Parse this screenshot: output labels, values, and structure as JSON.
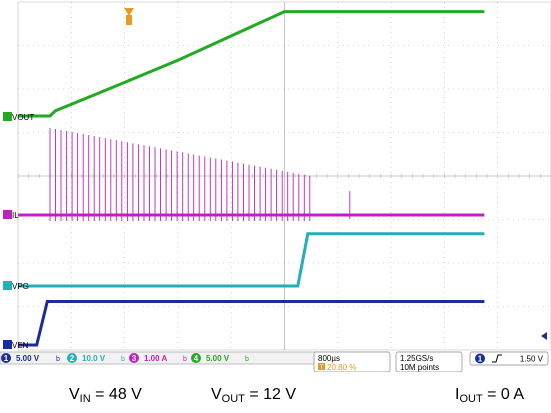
{
  "chart_data": {
    "type": "line",
    "x_unit": "µs",
    "time_per_division": "800µs",
    "trigger_position": "20.80 %",
    "series": [
      {
        "name": "VOUT",
        "channel": 4,
        "color": "#22aa22",
        "scale": "5.00 V",
        "x": [
          0,
          480,
          560,
          1200,
          2400,
          4000,
          7000
        ],
        "y": [
          0,
          0,
          0.6,
          2.6,
          6.4,
          12,
          12
        ]
      },
      {
        "name": "IL",
        "channel": 3,
        "color": "#c020c0",
        "scale": "1.00 A",
        "x": [
          0,
          7000
        ],
        "y": [
          0,
          0
        ]
      },
      {
        "name": "VPG",
        "channel": 2,
        "color": "#20b0b8",
        "scale": "10.0 V",
        "x": [
          0,
          4200,
          4350,
          7000
        ],
        "y": [
          0,
          0,
          12,
          12
        ]
      },
      {
        "name": "VEN",
        "channel": 1,
        "color": "#1a2d9c",
        "scale": "5.00 V",
        "x": [
          0,
          280,
          440,
          7000
        ],
        "y": [
          0,
          0,
          5,
          5
        ]
      }
    ],
    "il_pulses": {
      "x_range": [
        480,
        4380
      ],
      "max_amplitude": 2.0,
      "count": 48,
      "isolated_pulse_x": 4980
    }
  },
  "status_bar": {
    "ch1_num": "1",
    "ch1_scale": "5.00 V",
    "ch2_num": "2",
    "ch2_scale": "10.0 V",
    "ch3_num": "3",
    "ch3_scale": "1.00 A",
    "ch4_num": "4",
    "ch4_scale": "5.00 V",
    "bw_mark": "b",
    "time_per_div": "800µs",
    "trigger_pos_icon": "T",
    "trigger_pos": "20.80 %",
    "sample_rate": "1.25GS/s",
    "record_length": "10M points",
    "trig_channel_num": "1",
    "trig_edge_icon": "rising-edge-icon",
    "trig_level": "1.50 V"
  },
  "caption": {
    "vin_main": "V",
    "vin_sub": "IN",
    "vin_value": "= 48 V",
    "vout_main": "V",
    "vout_sub": "OUT",
    "vout_value": "= 12 V",
    "iout_main": "I",
    "iout_sub": "OUT",
    "iout_value": "= 0 A"
  },
  "colors": {
    "grid": "#b8b8b8",
    "ch1": "#1a2d9c",
    "ch2": "#20b0b8",
    "ch3": "#c020c0",
    "ch4": "#22aa22",
    "trigger": "#e89a20"
  }
}
